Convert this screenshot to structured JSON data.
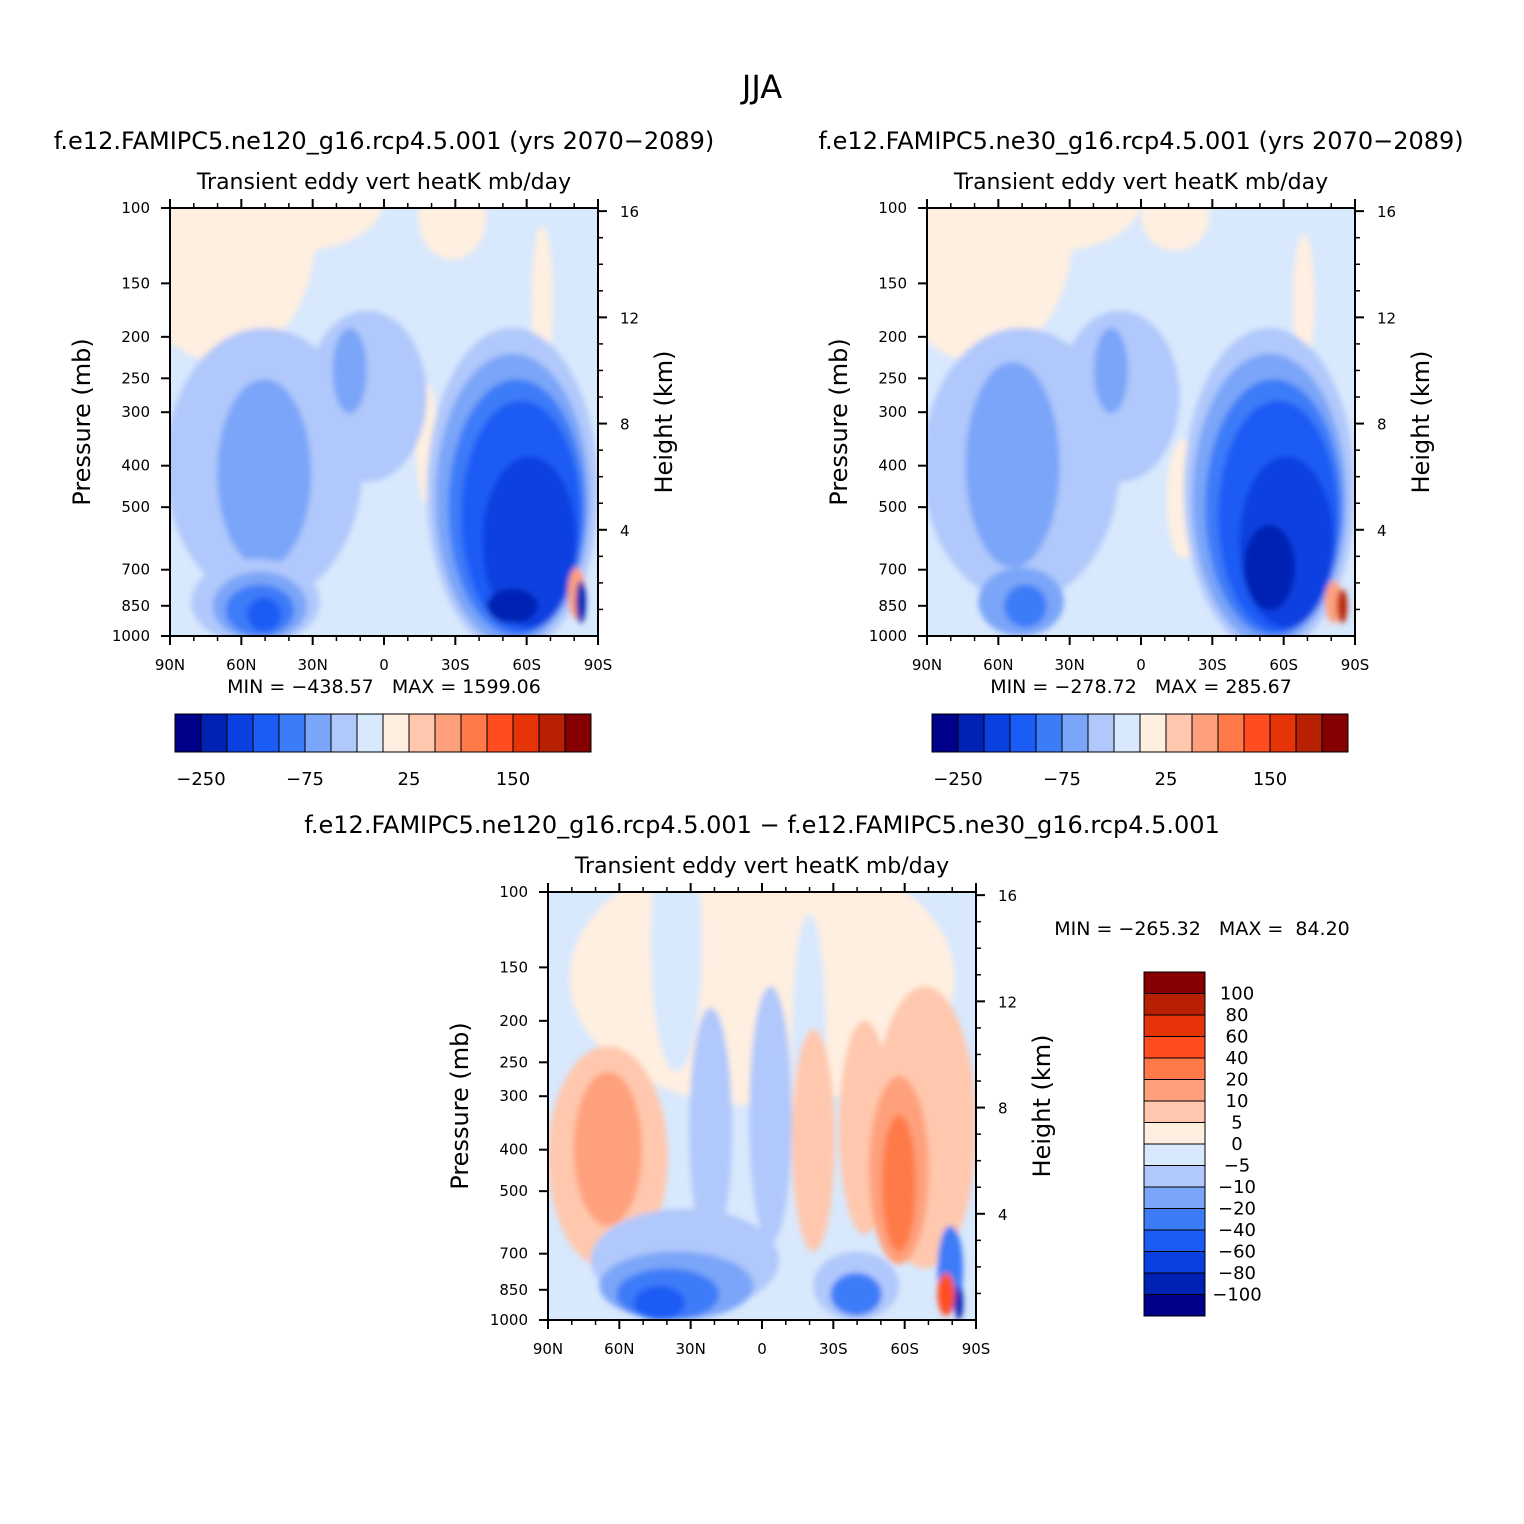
{
  "figure": {
    "title": "JJA",
    "palette_diverging": [
      "#00008b",
      "#0022b4",
      "#0a3fe0",
      "#1a5cf5",
      "#3d7cf8",
      "#7aa5f8",
      "#b0c8fb",
      "#d8e8fd",
      "#ffefe0",
      "#ffc8ae",
      "#ffa07c",
      "#ff7a48",
      "#ff4d20",
      "#e63408",
      "#b82004",
      "#850000"
    ]
  },
  "chart_data": [
    {
      "type": "heatmap",
      "panel": "ne120",
      "title": "f.e12.FAMIPC5.ne120_g16.rcp4.5.001 (yrs 2070−2089)",
      "subtitle": "Transient eddy vert heatK mb/day",
      "xlabel": "",
      "ylabel": "Pressure (mb)",
      "ylabel_right": "Height (km)",
      "x_ticks": [
        "90N",
        "60N",
        "30N",
        "0",
        "30S",
        "60S",
        "90S"
      ],
      "y_ticks": [
        100,
        150,
        200,
        250,
        300,
        400,
        500,
        700,
        850,
        1000
      ],
      "y_scale": "log",
      "ylim": [
        1000,
        100
      ],
      "right_ticks": [
        4,
        8,
        12,
        16
      ],
      "stats": "MIN = −438.57   MAX = 1599.06",
      "min": -438.57,
      "max": 1599.06,
      "colorbar": {
        "orientation": "horizontal",
        "labels": [
          "−250",
          "−75",
          "25",
          "150"
        ]
      }
    },
    {
      "type": "heatmap",
      "panel": "ne30",
      "title": "f.e12.FAMIPC5.ne30_g16.rcp4.5.001 (yrs 2070−2089)",
      "subtitle": "Transient eddy vert heatK mb/day",
      "xlabel": "",
      "ylabel": "Pressure (mb)",
      "ylabel_right": "Height (km)",
      "x_ticks": [
        "90N",
        "60N",
        "30N",
        "0",
        "30S",
        "60S",
        "90S"
      ],
      "y_ticks": [
        100,
        150,
        200,
        250,
        300,
        400,
        500,
        700,
        850,
        1000
      ],
      "y_scale": "log",
      "ylim": [
        1000,
        100
      ],
      "right_ticks": [
        4,
        8,
        12,
        16
      ],
      "stats": "MIN = −278.72   MAX = 285.67",
      "min": -278.72,
      "max": 285.67,
      "colorbar": {
        "orientation": "horizontal",
        "labels": [
          "−250",
          "−75",
          "25",
          "150"
        ]
      }
    },
    {
      "type": "heatmap",
      "panel": "difference",
      "title": "f.e12.FAMIPC5.ne120_g16.rcp4.5.001 − f.e12.FAMIPC5.ne30_g16.rcp4.5.001",
      "subtitle": "Transient eddy vert heatK mb/day",
      "xlabel": "",
      "ylabel": "Pressure (mb)",
      "ylabel_right": "Height (km)",
      "x_ticks": [
        "90N",
        "60N",
        "30N",
        "0",
        "30S",
        "60S",
        "90S"
      ],
      "y_ticks": [
        100,
        150,
        200,
        250,
        300,
        400,
        500,
        700,
        850,
        1000
      ],
      "y_scale": "log",
      "ylim": [
        1000,
        100
      ],
      "right_ticks": [
        4,
        8,
        12,
        16
      ],
      "stats": "MIN = −265.32   MAX =  84.20",
      "min": -265.32,
      "max": 84.2,
      "colorbar": {
        "orientation": "vertical",
        "labels": [
          "100",
          "80",
          "60",
          "40",
          "20",
          "10",
          "5",
          "0",
          "−5",
          "−10",
          "−20",
          "−40",
          "−60",
          "−80",
          "−100"
        ]
      }
    }
  ]
}
